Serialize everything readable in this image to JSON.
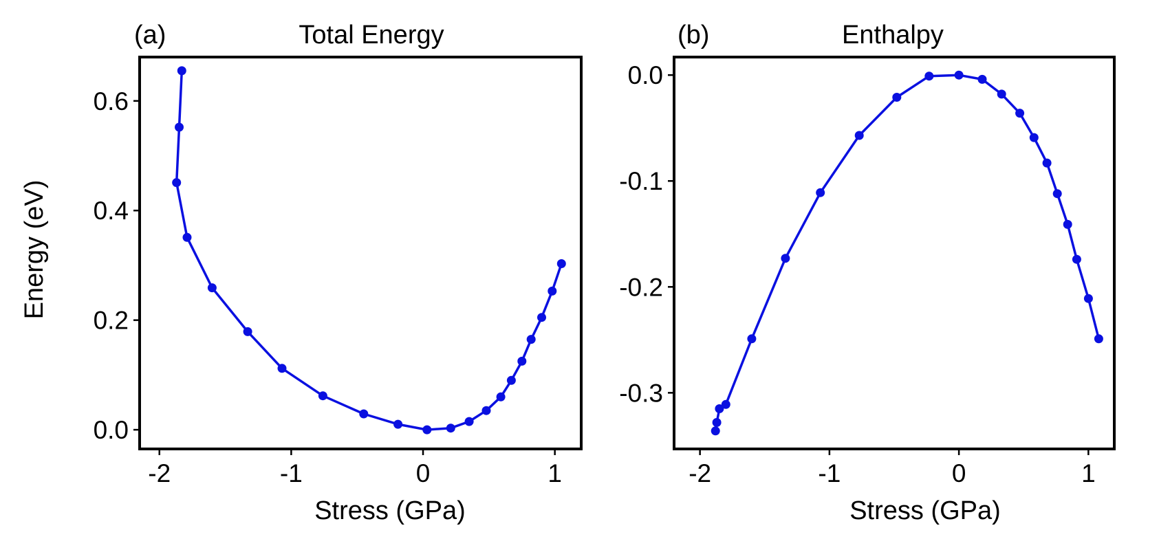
{
  "chart_data": [
    {
      "type": "line",
      "panel_label": "(a)",
      "title": "Total Energy",
      "xlabel": "Stress (GPa)",
      "ylabel": "Energy (eV)",
      "xlim": [
        -2.15,
        1.2
      ],
      "ylim": [
        -0.035,
        0.68
      ],
      "xticks": [
        -2,
        -1,
        0,
        1
      ],
      "xtick_labels": [
        "-2",
        "-1",
        "0",
        "1"
      ],
      "yticks": [
        0.0,
        0.2,
        0.4,
        0.6
      ],
      "ytick_labels": [
        "0.0",
        "0.2",
        "0.4",
        "0.6"
      ],
      "series": [
        {
          "name": "Total Energy",
          "color": "#0a10e0",
          "x": [
            -1.83,
            -1.85,
            -1.87,
            -1.79,
            -1.6,
            -1.33,
            -1.07,
            -0.76,
            -0.45,
            -0.19,
            0.03,
            0.21,
            0.35,
            0.48,
            0.59,
            0.67,
            0.75,
            0.82,
            0.9,
            0.98,
            1.05
          ],
          "y": [
            0.655,
            0.552,
            0.451,
            0.351,
            0.259,
            0.179,
            0.112,
            0.062,
            0.029,
            0.01,
            0.0,
            0.003,
            0.015,
            0.035,
            0.06,
            0.09,
            0.125,
            0.165,
            0.205,
            0.253,
            0.303
          ]
        }
      ]
    },
    {
      "type": "line",
      "panel_label": "(b)",
      "title": "Enthalpy",
      "xlabel": "Stress (GPa)",
      "ylabel": "",
      "xlim": [
        -2.2,
        1.2
      ],
      "ylim": [
        -0.353,
        0.017
      ],
      "xticks": [
        -2,
        -1,
        0,
        1
      ],
      "xtick_labels": [
        "-2",
        "-1",
        "0",
        "1"
      ],
      "yticks": [
        0.0,
        -0.1,
        -0.2,
        -0.3
      ],
      "ytick_labels": [
        "0.0",
        "-0.1",
        "-0.2",
        "-0.3"
      ],
      "series": [
        {
          "name": "Enthalpy",
          "color": "#0a10e0",
          "x": [
            -1.88,
            -1.87,
            -1.85,
            -1.8,
            -1.6,
            -1.34,
            -1.07,
            -0.77,
            -0.48,
            -0.23,
            0.0,
            0.18,
            0.33,
            0.47,
            0.58,
            0.68,
            0.76,
            0.84,
            0.91,
            1.0,
            1.08
          ],
          "y": [
            -0.336,
            -0.328,
            -0.315,
            -0.311,
            -0.249,
            -0.173,
            -0.111,
            -0.057,
            -0.021,
            -0.001,
            0.0,
            -0.004,
            -0.018,
            -0.036,
            -0.059,
            -0.083,
            -0.112,
            -0.141,
            -0.174,
            -0.211,
            -0.249
          ]
        }
      ]
    }
  ]
}
